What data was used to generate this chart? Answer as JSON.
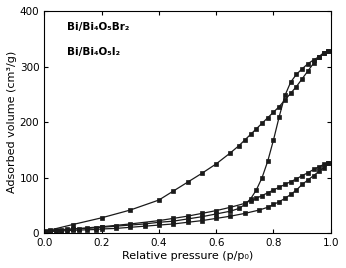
{
  "title": "",
  "xlabel": "Relative pressure (p/p₀)",
  "ylabel": "Adsorbed volume (cm³/g)",
  "xlim": [
    0.0,
    1.0
  ],
  "ylim": [
    0,
    400
  ],
  "yticks": [
    0,
    100,
    200,
    300,
    400
  ],
  "xticks": [
    0.0,
    0.2,
    0.4,
    0.6,
    0.8,
    1.0
  ],
  "legend": [
    "Bi/Bi₄O₅Br₂",
    "Bi/Bi₄O₅I₂"
  ],
  "curve1_adsorption_x": [
    0.005,
    0.02,
    0.04,
    0.06,
    0.08,
    0.1,
    0.12,
    0.15,
    0.18,
    0.2,
    0.25,
    0.3,
    0.35,
    0.4,
    0.45,
    0.5,
    0.55,
    0.6,
    0.65,
    0.68,
    0.7,
    0.72,
    0.74,
    0.76,
    0.78,
    0.8,
    0.82,
    0.84,
    0.86,
    0.88,
    0.9,
    0.92,
    0.94,
    0.96,
    0.975,
    0.99
  ],
  "curve1_adsorption_y": [
    4,
    5,
    6,
    7,
    7.5,
    8,
    8.5,
    9,
    10,
    11,
    13,
    15,
    17,
    20,
    22,
    26,
    30,
    35,
    40,
    45,
    52,
    62,
    78,
    100,
    130,
    168,
    210,
    248,
    272,
    286,
    296,
    305,
    312,
    318,
    324,
    328
  ],
  "curve1_desorption_x": [
    0.99,
    0.975,
    0.96,
    0.94,
    0.92,
    0.9,
    0.88,
    0.86,
    0.84,
    0.82,
    0.8,
    0.78,
    0.76,
    0.74,
    0.72,
    0.7,
    0.68,
    0.65,
    0.6,
    0.55,
    0.5,
    0.45,
    0.4,
    0.3,
    0.2,
    0.1,
    0.02
  ],
  "curve1_desorption_y": [
    328,
    325,
    318,
    306,
    292,
    278,
    264,
    252,
    240,
    228,
    218,
    208,
    198,
    188,
    178,
    168,
    158,
    145,
    125,
    108,
    92,
    76,
    60,
    42,
    28,
    16,
    6
  ],
  "curve2_adsorption_x": [
    0.005,
    0.02,
    0.04,
    0.06,
    0.08,
    0.1,
    0.12,
    0.15,
    0.18,
    0.2,
    0.25,
    0.3,
    0.35,
    0.4,
    0.45,
    0.5,
    0.55,
    0.6,
    0.65,
    0.7,
    0.75,
    0.78,
    0.8,
    0.82,
    0.84,
    0.86,
    0.88,
    0.9,
    0.92,
    0.94,
    0.96,
    0.975,
    0.99
  ],
  "curve2_adsorption_y": [
    2,
    3,
    4,
    4.5,
    5,
    5.5,
    6,
    6.5,
    7,
    8,
    9,
    11,
    13,
    15,
    17,
    20,
    23,
    27,
    31,
    36,
    42,
    47,
    52,
    57,
    63,
    70,
    78,
    88,
    96,
    104,
    112,
    118,
    126
  ],
  "curve2_desorption_x": [
    0.99,
    0.975,
    0.96,
    0.94,
    0.92,
    0.9,
    0.88,
    0.86,
    0.84,
    0.82,
    0.8,
    0.78,
    0.76,
    0.74,
    0.72,
    0.7,
    0.65,
    0.6,
    0.55,
    0.5,
    0.45,
    0.4,
    0.3,
    0.2,
    0.1,
    0.02
  ],
  "curve2_desorption_y": [
    126,
    124,
    120,
    115,
    109,
    104,
    98,
    93,
    88,
    83,
    78,
    73,
    68,
    63,
    59,
    54,
    47,
    41,
    36,
    31,
    27,
    23,
    17,
    12,
    8,
    4
  ],
  "line_color": "#1a1a1a",
  "marker": "s",
  "marker_size": 2.5,
  "background_color": "#ffffff",
  "legend_fontsize": 7.5,
  "axis_label_fontsize": 8,
  "tick_fontsize": 7.5
}
